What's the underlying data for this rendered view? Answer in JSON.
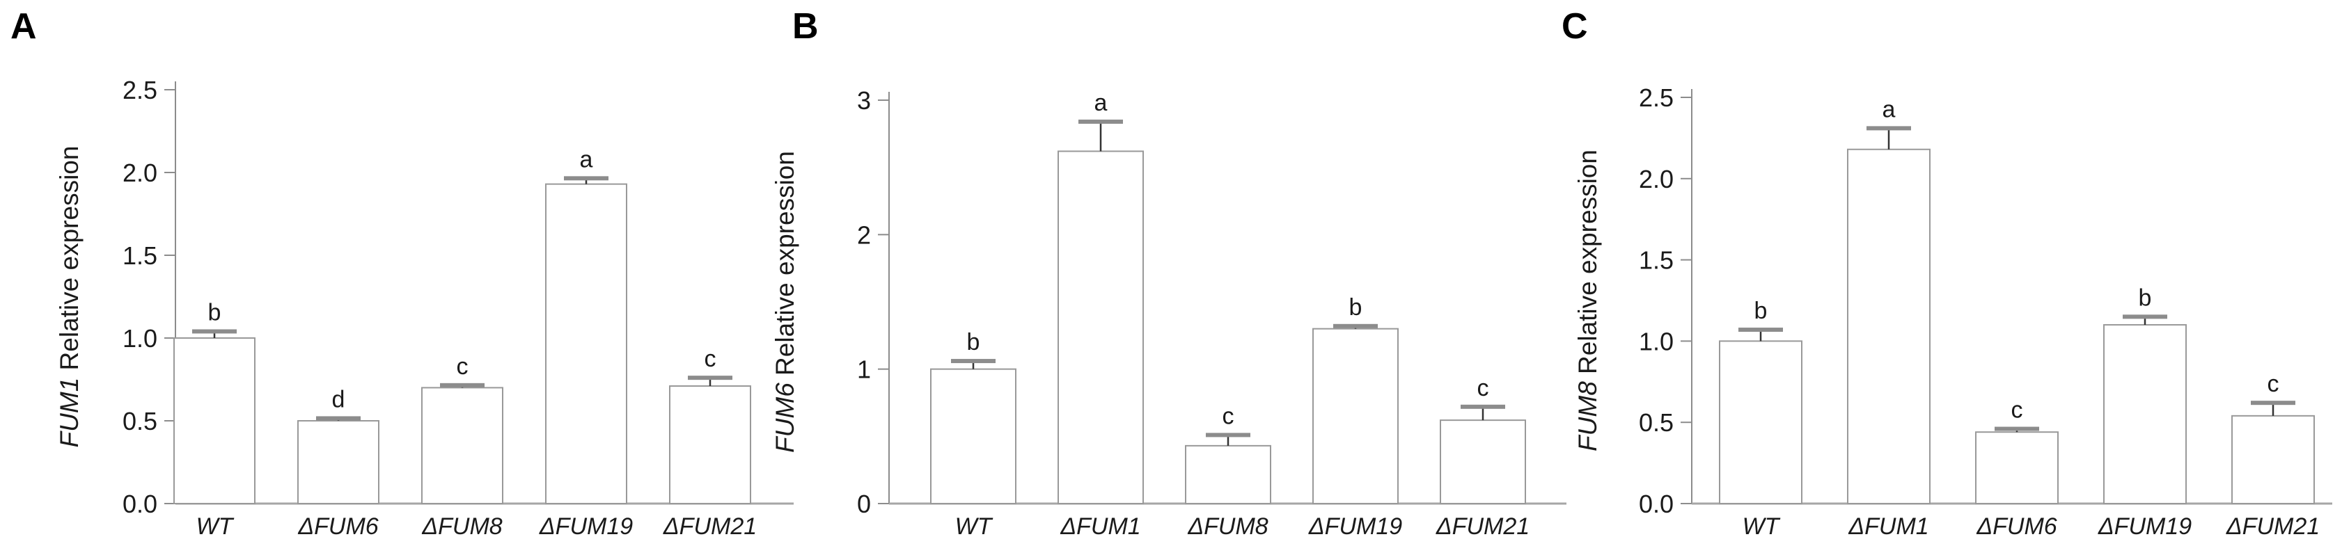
{
  "figure": {
    "panels": [
      {
        "label": "A"
      },
      {
        "label": "B"
      },
      {
        "label": "C"
      }
    ]
  },
  "colors": {
    "background": "#ffffff",
    "axis_line": "#8c8c8c",
    "baseline": "#a6a6a6",
    "bar_fill": "#ffffff",
    "bar_border": "#999999",
    "error_stem": "#333333",
    "error_cap": "#8c8c8c",
    "text": "#1a1a1a",
    "panel_letter": "#000000"
  },
  "chart_data": [
    {
      "type": "bar",
      "panel": "A",
      "title": "",
      "xlabel": "",
      "ylabel": "FUM1 Relative expression",
      "ylabel_gene": "FUM1",
      "ylabel_rest": " Relative expression",
      "categories": [
        "WT",
        "ΔFUM6",
        "ΔFUM8",
        "ΔFUM19",
        "ΔFUM21"
      ],
      "values": [
        1.0,
        0.5,
        0.7,
        1.93,
        0.71
      ],
      "errors": [
        0.04,
        0.015,
        0.015,
        0.035,
        0.05
      ],
      "sig_letters": [
        "b",
        "d",
        "c",
        "a",
        "c"
      ],
      "ylim": [
        0,
        2.5
      ],
      "yticks": [
        0.0,
        0.5,
        1.0,
        1.5,
        2.0,
        2.5
      ],
      "ytick_labels": [
        "0.0",
        "0.5",
        "1.0",
        "1.5",
        "2.0",
        "2.5"
      ],
      "grid": false,
      "legend": false
    },
    {
      "type": "bar",
      "panel": "B",
      "title": "",
      "xlabel": "",
      "ylabel": "FUM6 Relative expression",
      "ylabel_gene": "FUM6",
      "ylabel_rest": " Relative expression",
      "categories": [
        "WT",
        "ΔFUM1",
        "ΔFUM8",
        "ΔFUM19",
        "ΔFUM21"
      ],
      "values": [
        1.0,
        2.62,
        0.43,
        1.3,
        0.62
      ],
      "errors": [
        0.06,
        0.22,
        0.08,
        0.02,
        0.1
      ],
      "sig_letters": [
        "b",
        "a",
        "c",
        "b",
        "c"
      ],
      "ylim": [
        0,
        3
      ],
      "yticks": [
        0,
        1,
        2,
        3
      ],
      "ytick_labels": [
        "0",
        "1",
        "2",
        "3"
      ],
      "grid": false,
      "legend": false
    },
    {
      "type": "bar",
      "panel": "C",
      "title": "",
      "xlabel": "",
      "ylabel": "FUM8 Relative expression",
      "ylabel_gene": "FUM8",
      "ylabel_rest": " Relative expression",
      "categories": [
        "WT",
        "ΔFUM1",
        "ΔFUM6",
        "ΔFUM19",
        "ΔFUM21"
      ],
      "values": [
        1.0,
        2.18,
        0.44,
        1.1,
        0.54
      ],
      "errors": [
        0.07,
        0.13,
        0.02,
        0.05,
        0.08
      ],
      "sig_letters": [
        "b",
        "a",
        "c",
        "b",
        "c"
      ],
      "ylim": [
        0,
        2.5
      ],
      "yticks": [
        0.0,
        0.5,
        1.0,
        1.5,
        2.0,
        2.5
      ],
      "ytick_labels": [
        "0.0",
        "0.5",
        "1.0",
        "1.5",
        "2.0",
        "2.5"
      ],
      "grid": false,
      "legend": false
    }
  ]
}
